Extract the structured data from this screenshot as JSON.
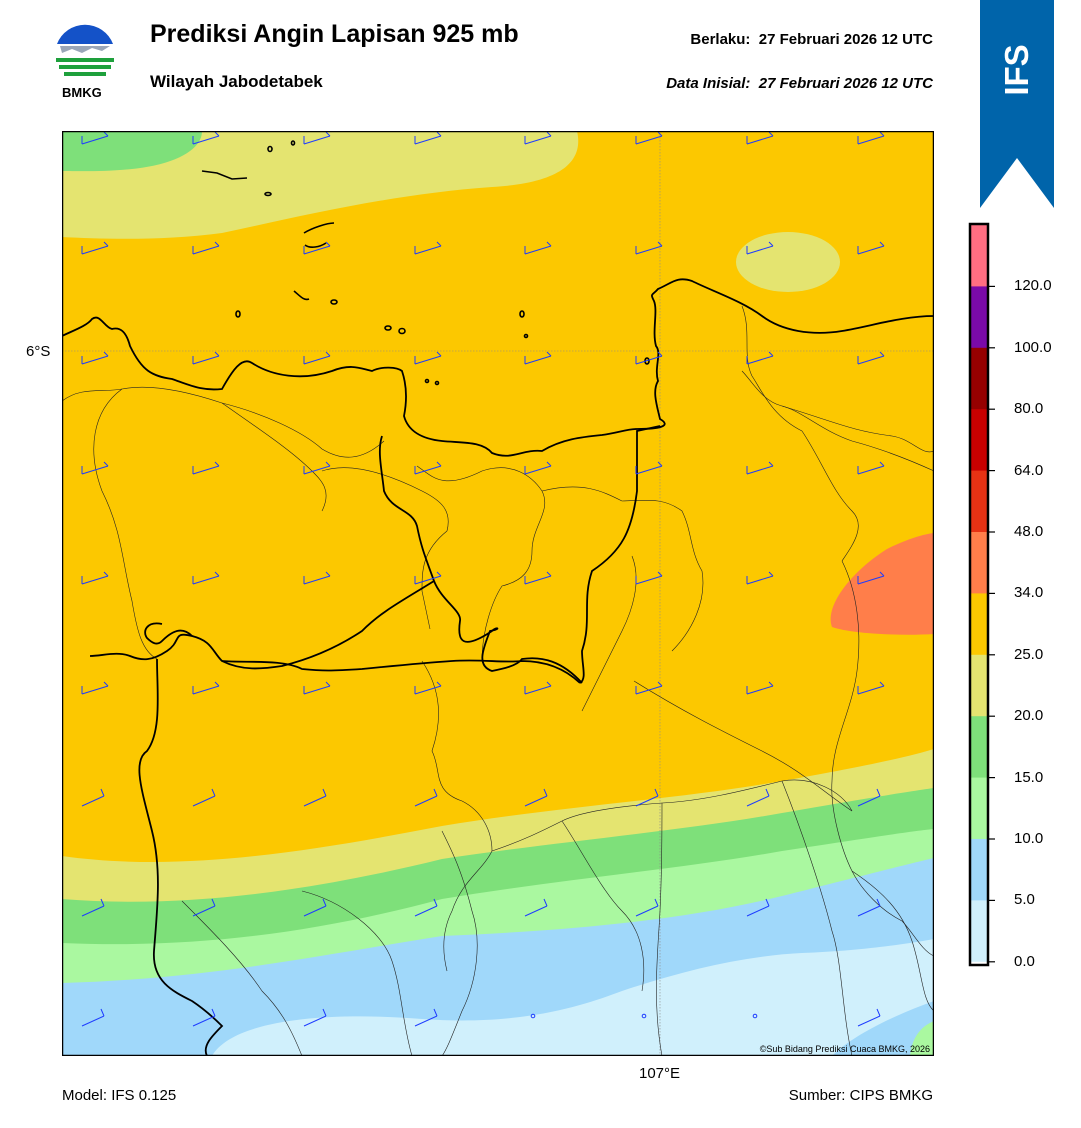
{
  "header": {
    "title": "Prediksi Angin Lapisan 925 mb",
    "subtitle": "Wilayah Jabodetabek",
    "valid_label": "Berlaku:  27 Februari 2026 12 UTC",
    "init_label": "Data Inisial:  27 Februari 2026 12 UTC",
    "logo_text": "BMKG",
    "ribbon_text": "IFS"
  },
  "map": {
    "lat_label": "6°S",
    "lon_label": "107°E",
    "credit": "©Sub Bidang Prediksi Cuaca BMKG, 2026",
    "layer_colors": [
      "#d0f0fc",
      "#a0d8fa",
      "#aaf8a0",
      "#7ee07a",
      "#e4e470",
      "#fcc800",
      "#ff7e4a"
    ],
    "barb_color": "#1e3cff"
  },
  "colorbar": {
    "levels": [
      "120.0",
      "100.0",
      "80.0",
      "64.0",
      "48.0",
      "34.0",
      "25.0",
      "20.0",
      "15.0",
      "10.0",
      "5.0",
      "0.0"
    ],
    "colors": [
      "#ff6e82",
      "#7a0aa8",
      "#960000",
      "#c80000",
      "#e63214",
      "#ff7e4a",
      "#fcc800",
      "#e4e470",
      "#7ee07a",
      "#aaf8a0",
      "#a0d8fa",
      "#d0f0fc",
      "#ffffff"
    ]
  },
  "footer": {
    "model": "Model: IFS 0.125",
    "source": "Sumber: CIPS BMKG"
  }
}
